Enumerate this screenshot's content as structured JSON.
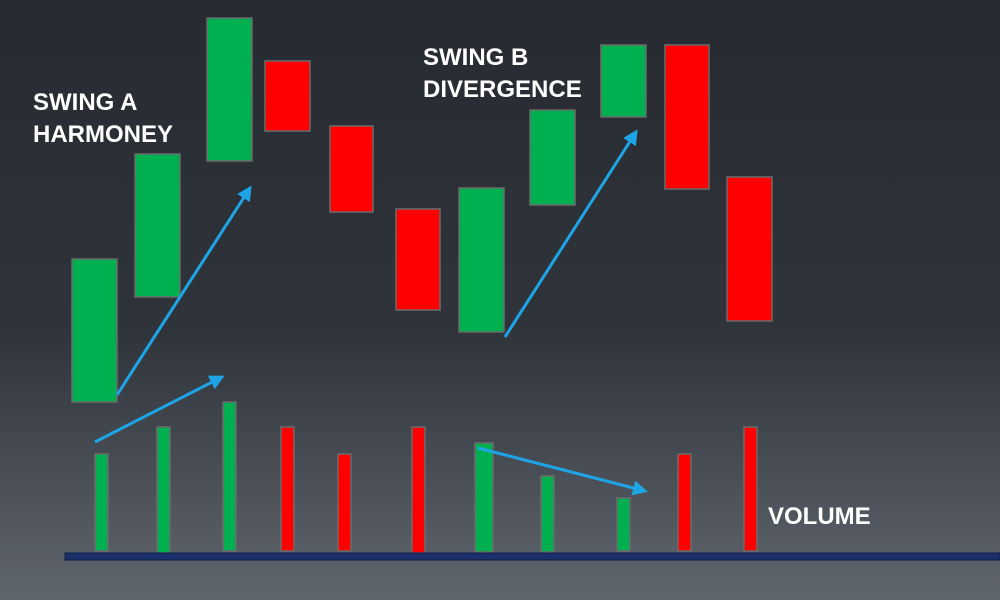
{
  "annotations": {
    "swing_a": [
      "SWING A",
      "HARMONEY"
    ],
    "swing_b": [
      "SWING B",
      "DIVERGENCE"
    ],
    "volume": "VOLUME"
  }
}
